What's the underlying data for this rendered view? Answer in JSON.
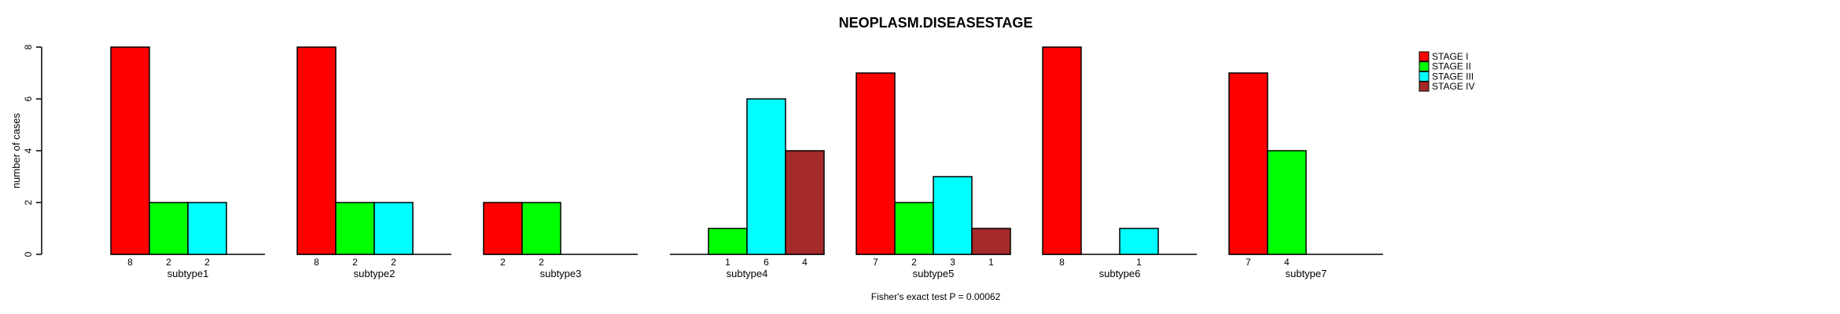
{
  "chart_data": {
    "type": "bar",
    "title": "NEOPLASM.DISEASESTAGE",
    "ylabel": "number of cases",
    "xlabel": "",
    "annotation": "Fisher's exact test P = 0.00062",
    "ylim": [
      0,
      8
    ],
    "yticks": [
      0,
      2,
      4,
      6,
      8
    ],
    "grid": false,
    "legend_position": "right-outside",
    "bar_value_labels": "count shown under each nonzero bar",
    "categories": [
      "subtype1",
      "subtype2",
      "subtype3",
      "subtype4",
      "subtype5",
      "subtype6",
      "subtype7"
    ],
    "series": [
      {
        "name": "STAGE I",
        "color": "#FF0000",
        "values": [
          8,
          8,
          2,
          0,
          7,
          8,
          7
        ]
      },
      {
        "name": "STAGE II",
        "color": "#00FF00",
        "values": [
          2,
          2,
          2,
          1,
          2,
          0,
          4
        ]
      },
      {
        "name": "STAGE III",
        "color": "#00FFFF",
        "values": [
          2,
          2,
          0,
          6,
          3,
          1,
          0
        ]
      },
      {
        "name": "STAGE IV",
        "color": "#A52A2A",
        "values": [
          0,
          0,
          0,
          4,
          1,
          0,
          0
        ]
      }
    ]
  },
  "colors": {
    "background": "#FFFFFF",
    "foreground": "#000000",
    "bar_border": "#000000"
  }
}
